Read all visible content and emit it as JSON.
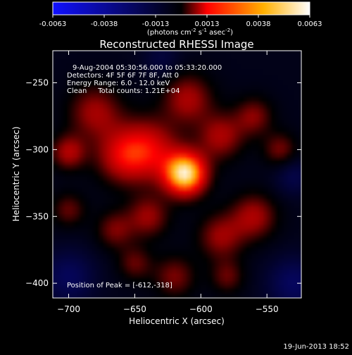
{
  "colorbar": {
    "ticks": [
      "-0.0063",
      "-0.0038",
      "-0.0013",
      "0.0013",
      "0.0038",
      "0.0063"
    ],
    "units_main": "(photons cm",
    "units_exp1": "-2",
    "units_mid": " s",
    "units_exp2": "-1",
    "units_end": " asec",
    "units_exp3": "-2",
    "units_close": ")",
    "colors": [
      "#1010ff",
      "#000000",
      "#ff0000",
      "#ffb000",
      "#ffffff"
    ]
  },
  "title": "Reconstructed RHESSI Image",
  "annotations": {
    "time_range": "9-Aug-2004 05:30:56.000 to 05:33:20.000",
    "detectors": "Detectors: 4F 5F 6F 7F 8F, Att 0",
    "energy": "Energy Range: 6.0 - 12.0 keV",
    "clean": "Clean     Total counts: 1.21E+04",
    "peak": "Position of Peak = [-612,-318]"
  },
  "footer": {
    "timestamp": "19-Jun-2013 18:52"
  },
  "chart_data": {
    "type": "heatmap",
    "title": "Reconstructed RHESSI Image",
    "xlabel": "Heliocentric X (arcsec)",
    "ylabel": "Heliocentric Y (arcsec)",
    "xlim": [
      -712,
      -524
    ],
    "ylim": [
      -411,
      -226
    ],
    "x_ticks": [
      -700,
      -650,
      -600,
      -550
    ],
    "y_ticks": [
      -250,
      -300,
      -350,
      -400
    ],
    "colorbar_range": [
      -0.0063,
      0.0063
    ],
    "peak": {
      "x": -612,
      "y": -318
    },
    "sources": [
      {
        "x": -612,
        "y": -318,
        "amp": 0.0063,
        "sigma": 11
      },
      {
        "x": -640,
        "y": -300,
        "amp": 0.0028,
        "sigma": 16
      },
      {
        "x": -660,
        "y": -305,
        "amp": 0.0022,
        "sigma": 14
      },
      {
        "x": -700,
        "y": -302,
        "amp": 0.0022,
        "sigma": 9
      },
      {
        "x": -680,
        "y": -272,
        "amp": 0.002,
        "sigma": 14
      },
      {
        "x": -610,
        "y": -262,
        "amp": 0.0021,
        "sigma": 13
      },
      {
        "x": -585,
        "y": -290,
        "amp": 0.0021,
        "sigma": 12
      },
      {
        "x": -560,
        "y": -275,
        "amp": 0.0017,
        "sigma": 10
      },
      {
        "x": -540,
        "y": -300,
        "amp": 0.0016,
        "sigma": 9
      },
      {
        "x": -560,
        "y": -350,
        "amp": 0.0021,
        "sigma": 12
      },
      {
        "x": -585,
        "y": -365,
        "amp": 0.0019,
        "sigma": 12
      },
      {
        "x": -640,
        "y": -350,
        "amp": 0.0019,
        "sigma": 11
      },
      {
        "x": -665,
        "y": -360,
        "amp": 0.0016,
        "sigma": 10
      },
      {
        "x": -700,
        "y": -345,
        "amp": 0.0014,
        "sigma": 9
      },
      {
        "x": -620,
        "y": -395,
        "amp": 0.0016,
        "sigma": 11
      },
      {
        "x": -650,
        "y": -385,
        "amp": 0.0014,
        "sigma": 9
      },
      {
        "x": -580,
        "y": -395,
        "amp": 0.0014,
        "sigma": 9
      },
      {
        "x": -700,
        "y": -395,
        "amp": -0.0016,
        "sigma": 14
      },
      {
        "x": -530,
        "y": -400,
        "amp": -0.0017,
        "sigma": 14
      },
      {
        "x": -530,
        "y": -320,
        "amp": -0.0012,
        "sigma": 10
      },
      {
        "x": -630,
        "y": -232,
        "amp": -0.0009,
        "sigma": 10
      }
    ]
  }
}
